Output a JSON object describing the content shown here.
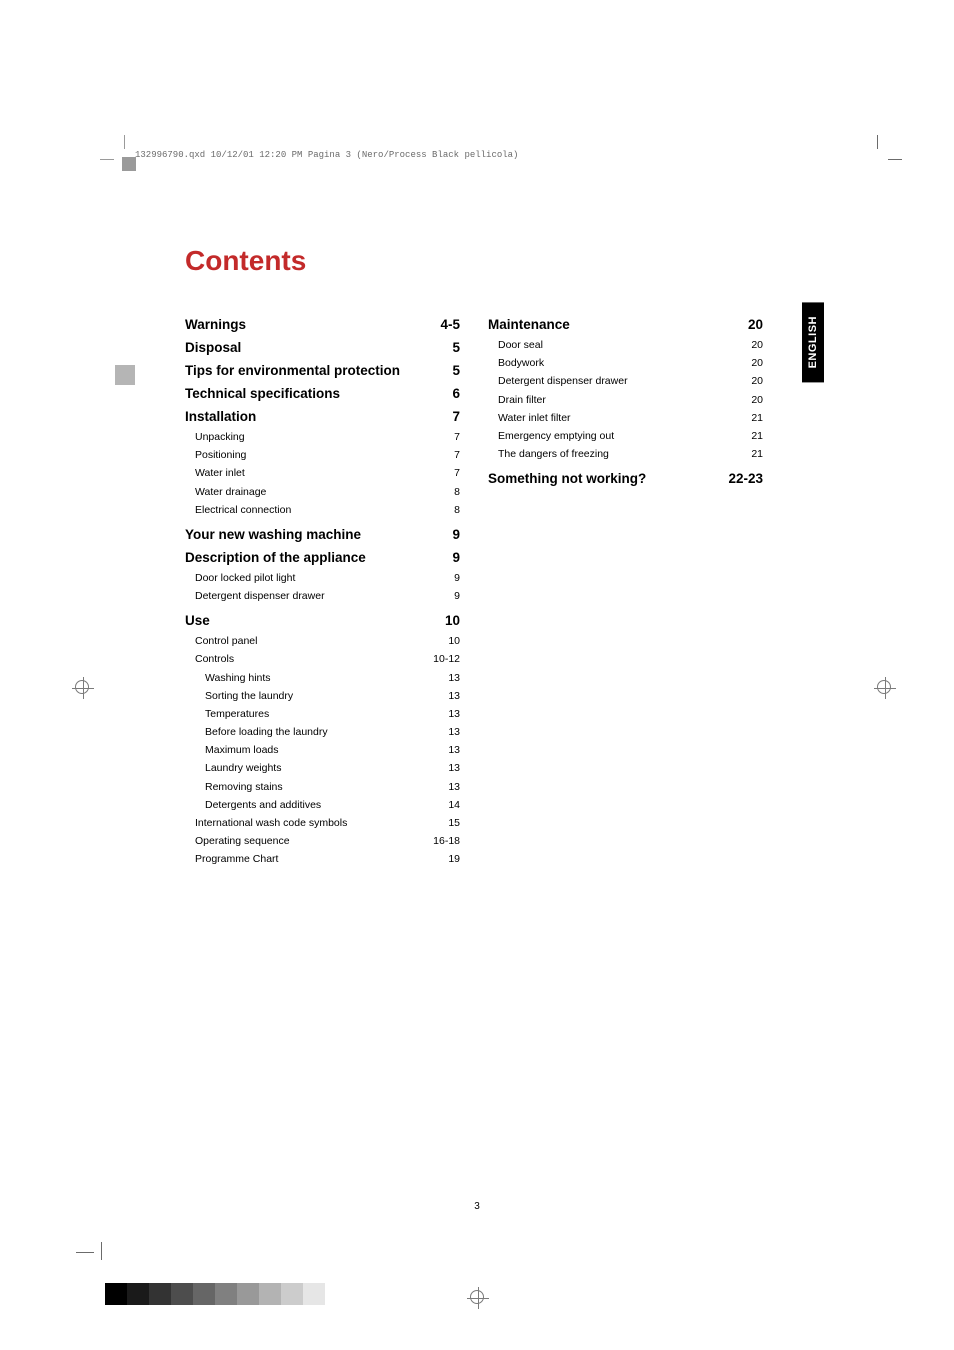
{
  "header_text": "132996790.qxd  10/12/01  12:20 PM  Pagina  3    (Nero/Process Black pellicola)",
  "title": "Contents",
  "language_tab": "ENGLISH",
  "page_number": "3",
  "left_column": [
    {
      "type": "section",
      "label": "Warnings",
      "page": "4-5"
    },
    {
      "type": "section",
      "label": "Disposal",
      "page": "5"
    },
    {
      "type": "section",
      "label": "Tips for environmental protection",
      "page": "5"
    },
    {
      "type": "section",
      "label": "Technical specifications",
      "page": "6"
    },
    {
      "type": "section",
      "label": "Installation",
      "page": "7"
    },
    {
      "type": "entry",
      "label": "Unpacking",
      "page": "7"
    },
    {
      "type": "entry",
      "label": "Positioning",
      "page": "7"
    },
    {
      "type": "entry",
      "label": "Water inlet",
      "page": "7"
    },
    {
      "type": "entry",
      "label": "Water drainage",
      "page": "8"
    },
    {
      "type": "entry",
      "label": "Electrical connection",
      "page": "8"
    },
    {
      "type": "section",
      "label": "Your new washing machine",
      "page": "9"
    },
    {
      "type": "section",
      "label": "Description of the appliance",
      "page": "9"
    },
    {
      "type": "entry",
      "label": "Door locked pilot light",
      "page": "9"
    },
    {
      "type": "entry",
      "label": "Detergent dispenser drawer",
      "page": "9"
    },
    {
      "type": "section",
      "label": "Use",
      "page": "10"
    },
    {
      "type": "entry",
      "label": "Control panel",
      "page": "10"
    },
    {
      "type": "entry",
      "label": "Controls",
      "page": "10-12"
    },
    {
      "type": "sub",
      "label": "Washing hints",
      "page": "13"
    },
    {
      "type": "sub",
      "label": "Sorting the laundry",
      "page": "13"
    },
    {
      "type": "sub",
      "label": "Temperatures",
      "page": "13"
    },
    {
      "type": "sub",
      "label": "Before loading the laundry",
      "page": "13"
    },
    {
      "type": "sub",
      "label": "Maximum loads",
      "page": "13"
    },
    {
      "type": "sub",
      "label": "Laundry weights",
      "page": "13"
    },
    {
      "type": "sub",
      "label": "Removing stains",
      "page": "13"
    },
    {
      "type": "sub",
      "label": "Detergents and additives",
      "page": "14"
    },
    {
      "type": "entry",
      "label": "International wash code symbols",
      "page": "15"
    },
    {
      "type": "entry",
      "label": "Operating sequence",
      "page": "16-18"
    },
    {
      "type": "entry",
      "label": "Programme Chart",
      "page": "19"
    }
  ],
  "right_column": [
    {
      "type": "section",
      "label": "Maintenance",
      "page": "20"
    },
    {
      "type": "entry",
      "label": "Door seal",
      "page": "20"
    },
    {
      "type": "entry",
      "label": "Bodywork",
      "page": "20"
    },
    {
      "type": "entry",
      "label": "Detergent dispenser drawer",
      "page": "20"
    },
    {
      "type": "entry",
      "label": "Drain filter",
      "page": "20"
    },
    {
      "type": "entry",
      "label": "Water inlet filter",
      "page": "21"
    },
    {
      "type": "entry",
      "label": "Emergency emptying out",
      "page": "21"
    },
    {
      "type": "entry",
      "label": "The dangers of freezing",
      "page": "21"
    },
    {
      "type": "section",
      "label": "Something not working?",
      "page": "22-23"
    }
  ],
  "color_bar_colors": [
    "#000000",
    "#1a1a1a",
    "#333333",
    "#4d4d4d",
    "#666666",
    "#808080",
    "#999999",
    "#b3b3b3",
    "#cccccc",
    "#e6e6e6"
  ],
  "title_color": "#c32a2a",
  "section_fontsize": 13.5,
  "entry_fontsize": 10.5
}
